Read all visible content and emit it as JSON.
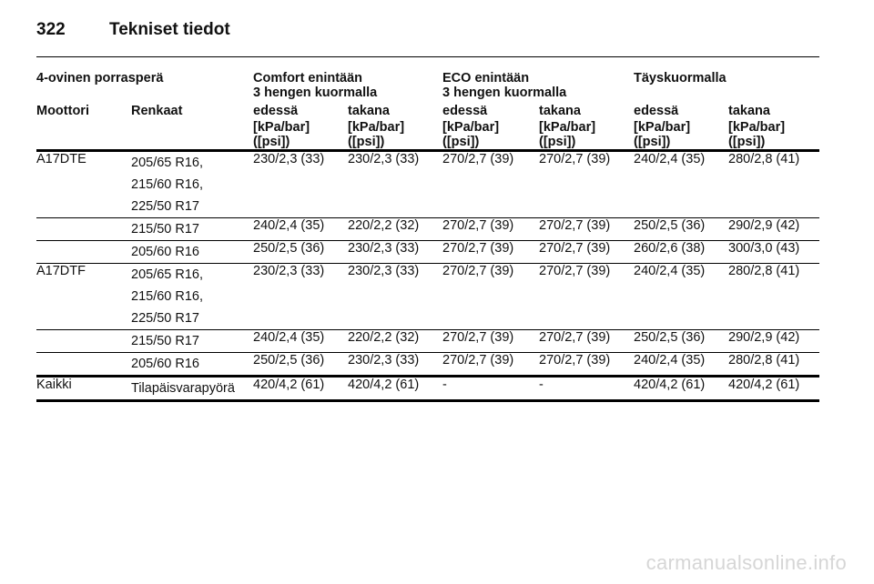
{
  "page": {
    "number": "322",
    "title": "Tekniset tiedot"
  },
  "table": {
    "body_type": "4-ovinen porrasperä",
    "groups": [
      {
        "line1": "Comfort enintään",
        "line2": "3 hengen kuormalla"
      },
      {
        "line1": "ECO enintään",
        "line2": "3 hengen kuormalla"
      },
      {
        "line1": "Täyskuormalla",
        "line2": ""
      }
    ],
    "columns": [
      "Moottori",
      "Renkaat",
      "edessä",
      "takana",
      "edessä",
      "takana",
      "edessä",
      "takana"
    ],
    "unit_line1": "[kPa/bar]",
    "unit_line2": "([psi])",
    "rows": [
      {
        "engine": "A17DTE",
        "tyres": [
          "205/65 R16,",
          "215/60 R16,",
          "225/50 R17"
        ],
        "values": [
          "230/2,3 (33)",
          "230/2,3 (33)",
          "270/2,7 (39)",
          "270/2,7 (39)",
          "240/2,4 (35)",
          "280/2,8 (41)"
        ]
      },
      {
        "engine": "",
        "tyres": [
          "215/50 R17"
        ],
        "values": [
          "240/2,4 (35)",
          "220/2,2 (32)",
          "270/2,7 (39)",
          "270/2,7 (39)",
          "250/2,5 (36)",
          "290/2,9 (42)"
        ]
      },
      {
        "engine": "",
        "tyres": [
          "205/60 R16"
        ],
        "values": [
          "250/2,5 (36)",
          "230/2,3 (33)",
          "270/2,7 (39)",
          "270/2,7 (39)",
          "260/2,6 (38)",
          "300/3,0 (43)"
        ]
      },
      {
        "engine": "A17DTF",
        "tyres": [
          "205/65 R16,",
          "215/60 R16,",
          "225/50 R17"
        ],
        "values": [
          "230/2,3 (33)",
          "230/2,3 (33)",
          "270/2,7 (39)",
          "270/2,7 (39)",
          "240/2,4 (35)",
          "280/2,8 (41)"
        ]
      },
      {
        "engine": "",
        "tyres": [
          "215/50 R17"
        ],
        "values": [
          "240/2,4 (35)",
          "220/2,2 (32)",
          "270/2,7 (39)",
          "270/2,7 (39)",
          "250/2,5 (36)",
          "290/2,9 (42)"
        ]
      },
      {
        "engine": "",
        "tyres": [
          "205/60 R16"
        ],
        "values": [
          "250/2,5 (36)",
          "230/2,3 (33)",
          "270/2,7 (39)",
          "270/2,7 (39)",
          "240/2,4 (35)",
          "280/2,8 (41)"
        ]
      },
      {
        "engine": "Kaikki",
        "tyres": [
          "Tilapäisvarapyörä"
        ],
        "values": [
          "420/4,2 (61)",
          "420/4,2 (61)",
          "-",
          "-",
          "420/4,2 (61)",
          "420/4,2 (61)"
        ]
      }
    ]
  },
  "watermark": "carmanualsonline.info"
}
